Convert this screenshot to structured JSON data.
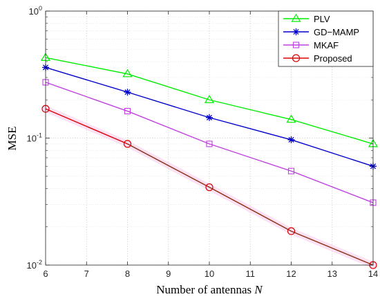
{
  "chart_data": {
    "type": "line",
    "x": [
      6,
      8,
      10,
      12,
      14
    ],
    "xlim": [
      6,
      14
    ],
    "ylim": [
      0.01,
      1
    ],
    "yscale": "log",
    "xticks": [
      "6",
      "7",
      "8",
      "9",
      "10",
      "11",
      "12",
      "13",
      "14"
    ],
    "yticks": [
      {
        "base": "10",
        "exp": "-2"
      },
      {
        "base": "10",
        "exp": "-1"
      },
      {
        "base": "10",
        "exp": "0"
      }
    ],
    "xlabel": {
      "text": "Number of antennas ",
      "var": "N"
    },
    "ylabel": "MSE",
    "grid": true,
    "legend_position": "top-right",
    "series": [
      {
        "name": "PLV",
        "color": "#00ee00",
        "marker": "triangle",
        "values": [
          0.43,
          0.32,
          0.2,
          0.14,
          0.09
        ]
      },
      {
        "name": "GD−MAMP",
        "color": "#0000cc",
        "marker": "asterisk",
        "values": [
          0.36,
          0.23,
          0.145,
          0.097,
          0.06
        ]
      },
      {
        "name": "MKAF",
        "color": "#bf40e0",
        "marker": "square",
        "values": [
          0.275,
          0.163,
          0.09,
          0.055,
          0.031
        ]
      },
      {
        "name": "Proposed",
        "color": "#dd0000",
        "marker": "circle",
        "values": [
          0.17,
          0.09,
          0.041,
          0.0185,
          0.01
        ]
      }
    ]
  }
}
